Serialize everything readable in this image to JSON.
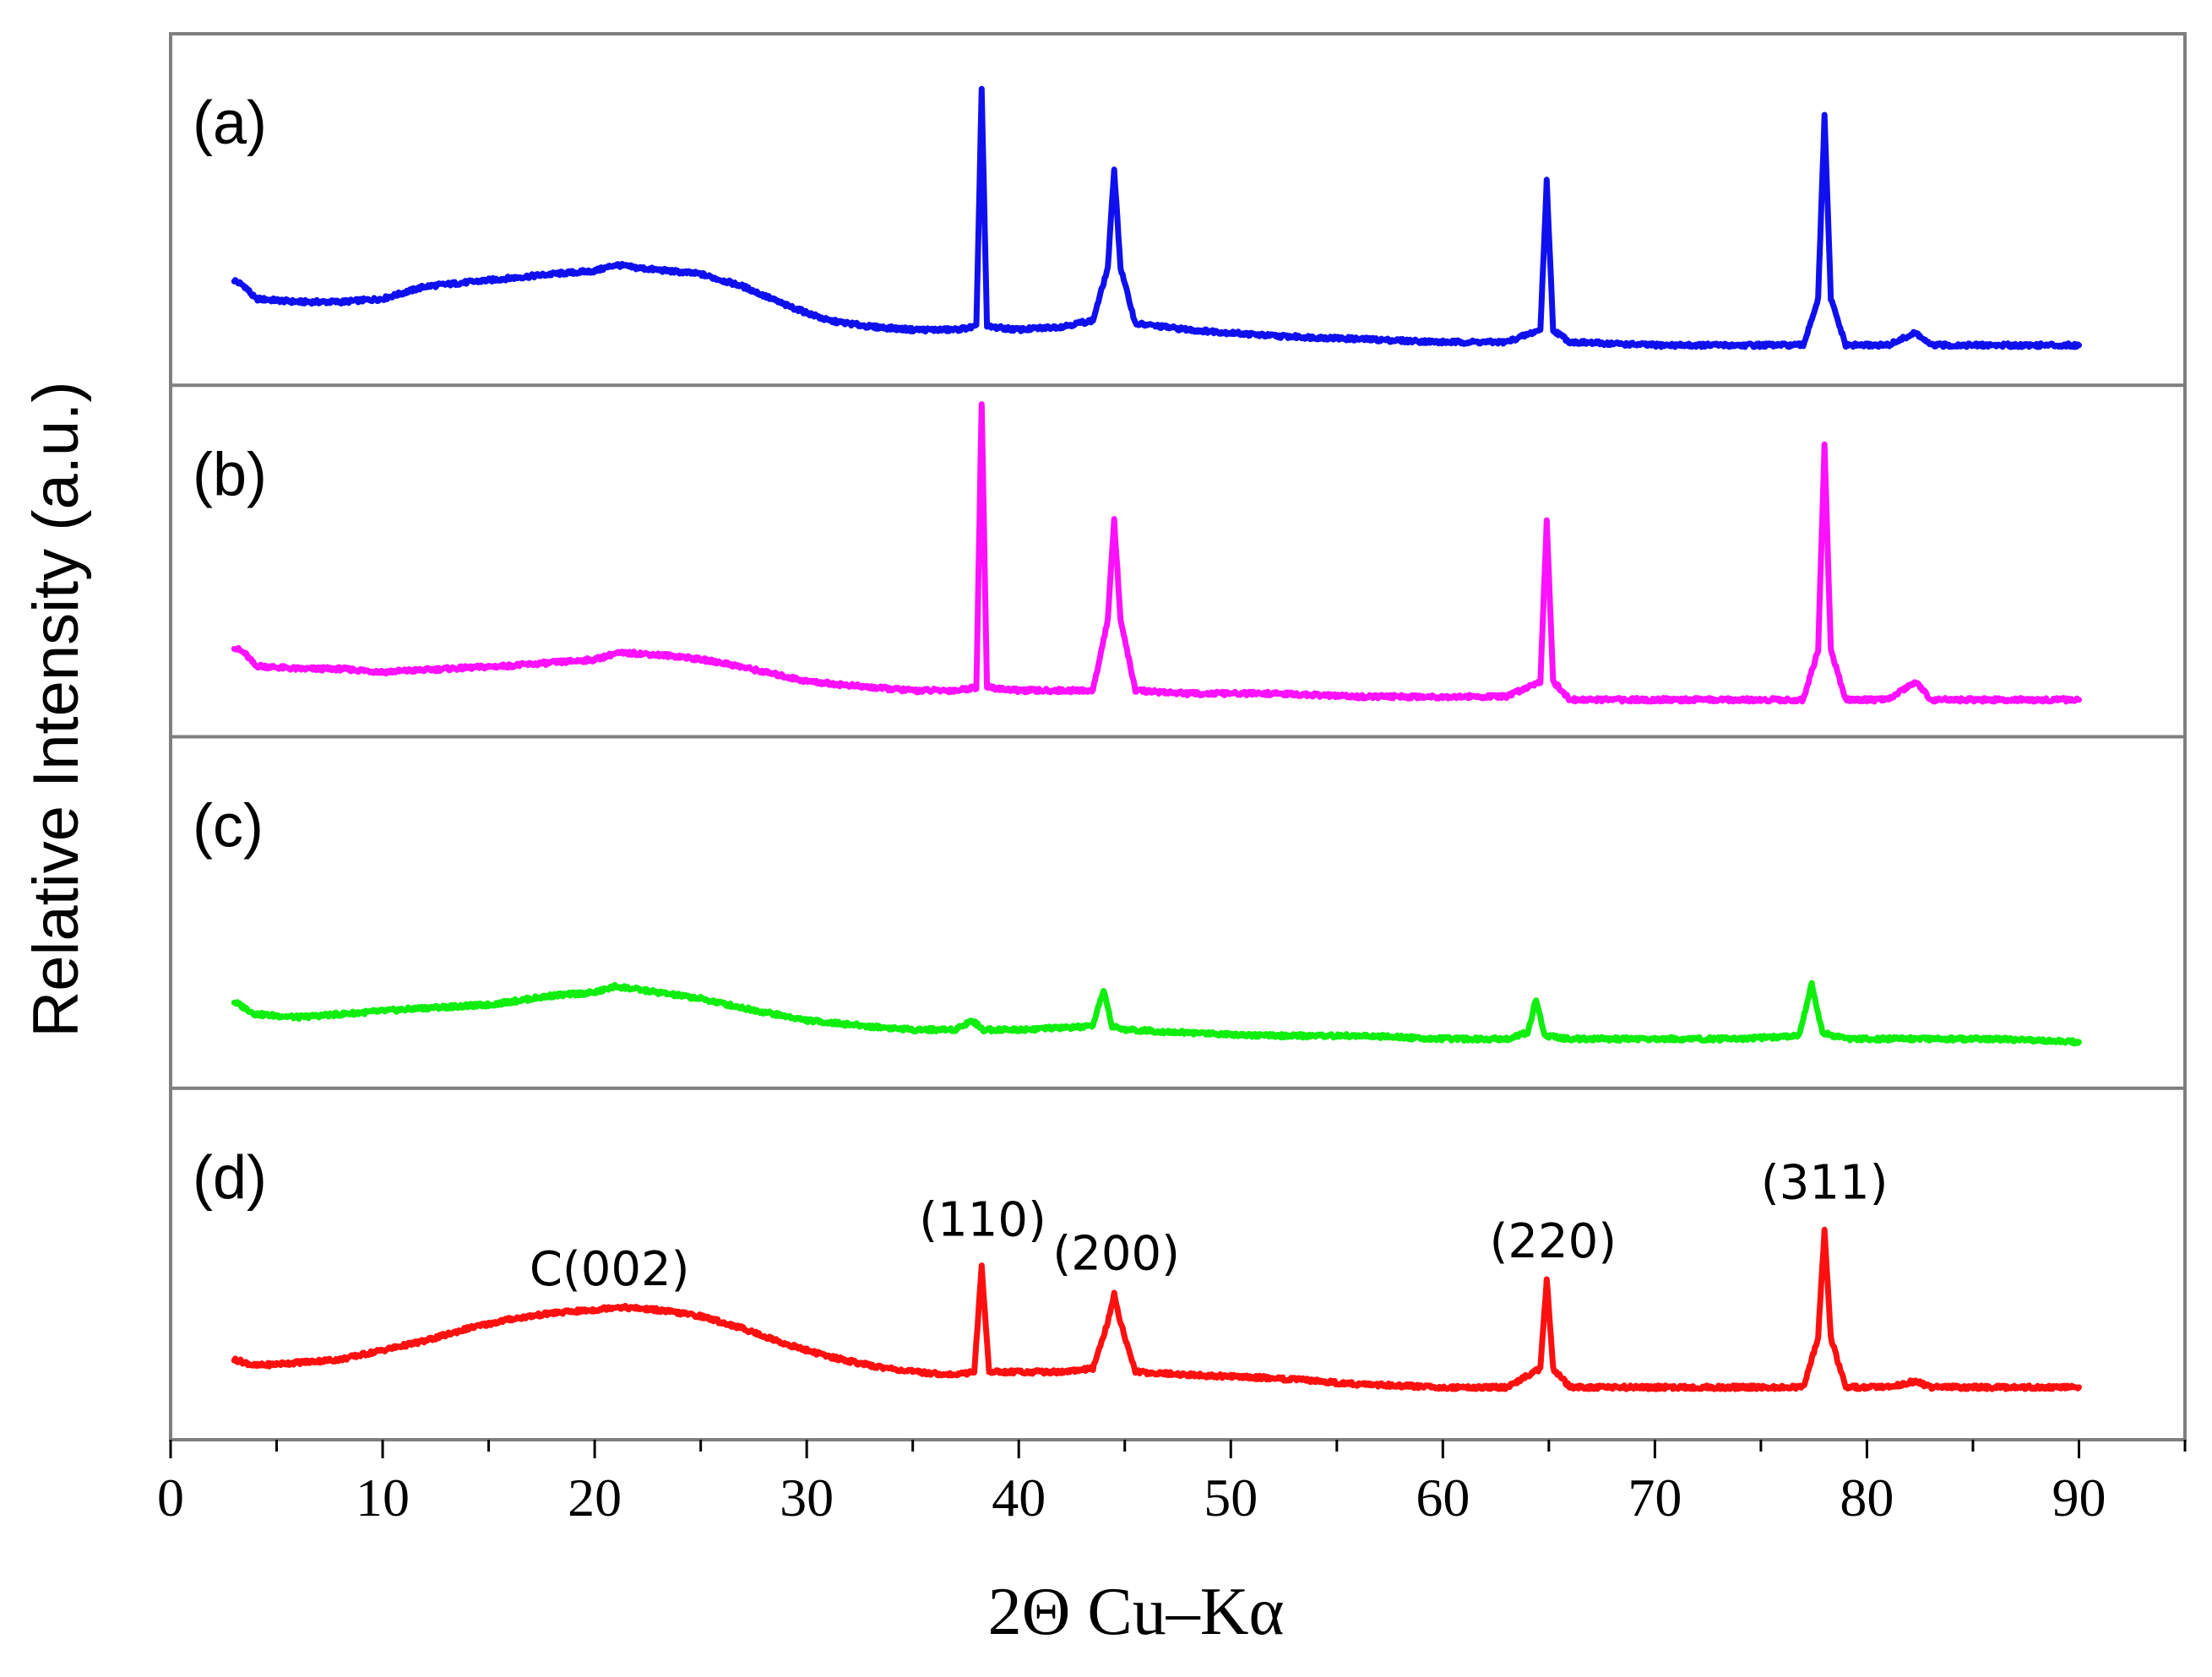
{
  "chart_data": {
    "type": "line",
    "title": "",
    "xlabel": "2Θ Cu–Kα",
    "ylabel": "Relative Intensity (a.u.)",
    "xlim": [
      0,
      95
    ],
    "xticks": [
      "0",
      "10",
      "20",
      "30",
      "40",
      "50",
      "60",
      "70",
      "80",
      "90"
    ],
    "grid": false,
    "legend": "none",
    "series": [
      {
        "name": "(a)",
        "color": "#1010ee",
        "points": [
          [
            3,
            0.26
          ],
          [
            3.5,
            0.24
          ],
          [
            4,
            0.2
          ],
          [
            6,
            0.19
          ],
          [
            8,
            0.19
          ],
          [
            10,
            0.2
          ],
          [
            12,
            0.24
          ],
          [
            15,
            0.26
          ],
          [
            18,
            0.28
          ],
          [
            20,
            0.29
          ],
          [
            21,
            0.31
          ],
          [
            22,
            0.3
          ],
          [
            25,
            0.28
          ],
          [
            27,
            0.24
          ],
          [
            29,
            0.18
          ],
          [
            31,
            0.13
          ],
          [
            33,
            0.11
          ],
          [
            35,
            0.1
          ],
          [
            37,
            0.1
          ],
          [
            38,
            0.11
          ],
          [
            38.25,
            0.88
          ],
          [
            38.5,
            0.11
          ],
          [
            40,
            0.1
          ],
          [
            42,
            0.11
          ],
          [
            43.5,
            0.13
          ],
          [
            44.2,
            0.3
          ],
          [
            44.5,
            0.62
          ],
          [
            44.8,
            0.3
          ],
          [
            45.5,
            0.12
          ],
          [
            48,
            0.1
          ],
          [
            52,
            0.08
          ],
          [
            56,
            0.07
          ],
          [
            60,
            0.06
          ],
          [
            63,
            0.06
          ],
          [
            64.6,
            0.1
          ],
          [
            64.9,
            0.58
          ],
          [
            65.2,
            0.1
          ],
          [
            66,
            0.06
          ],
          [
            70,
            0.05
          ],
          [
            74,
            0.05
          ],
          [
            77,
            0.05
          ],
          [
            77.7,
            0.2
          ],
          [
            78,
            0.79
          ],
          [
            78.3,
            0.2
          ],
          [
            79,
            0.05
          ],
          [
            81,
            0.05
          ],
          [
            82.3,
            0.09
          ],
          [
            83,
            0.05
          ],
          [
            86,
            0.05
          ],
          [
            90,
            0.05
          ]
        ]
      },
      {
        "name": "(b)",
        "color": "#ff10ff",
        "points": [
          [
            3,
            0.21
          ],
          [
            3.5,
            0.19
          ],
          [
            4,
            0.15
          ],
          [
            6,
            0.14
          ],
          [
            8,
            0.14
          ],
          [
            10,
            0.13
          ],
          [
            13,
            0.14
          ],
          [
            16,
            0.15
          ],
          [
            18,
            0.16
          ],
          [
            20,
            0.17
          ],
          [
            21,
            0.19
          ],
          [
            22,
            0.19
          ],
          [
            24,
            0.18
          ],
          [
            26,
            0.16
          ],
          [
            28,
            0.13
          ],
          [
            30,
            0.1
          ],
          [
            33,
            0.08
          ],
          [
            35,
            0.07
          ],
          [
            37,
            0.07
          ],
          [
            38,
            0.08
          ],
          [
            38.25,
            1.0
          ],
          [
            38.5,
            0.08
          ],
          [
            40,
            0.07
          ],
          [
            43.5,
            0.07
          ],
          [
            44.2,
            0.3
          ],
          [
            44.5,
            0.62
          ],
          [
            44.8,
            0.3
          ],
          [
            45.5,
            0.07
          ],
          [
            48,
            0.06
          ],
          [
            52,
            0.06
          ],
          [
            56,
            0.05
          ],
          [
            60,
            0.05
          ],
          [
            63,
            0.05
          ],
          [
            64.6,
            0.1
          ],
          [
            64.9,
            0.62
          ],
          [
            65.2,
            0.1
          ],
          [
            66,
            0.04
          ],
          [
            70,
            0.04
          ],
          [
            74,
            0.04
          ],
          [
            77,
            0.04
          ],
          [
            77.7,
            0.2
          ],
          [
            78,
            0.86
          ],
          [
            78.3,
            0.2
          ],
          [
            79,
            0.04
          ],
          [
            81,
            0.04
          ],
          [
            82.3,
            0.1
          ],
          [
            83,
            0.04
          ],
          [
            86,
            0.04
          ],
          [
            90,
            0.04
          ]
        ]
      },
      {
        "name": "(c)",
        "color": "#10ee10",
        "points": [
          [
            3,
            0.2
          ],
          [
            3.5,
            0.18
          ],
          [
            4,
            0.16
          ],
          [
            6,
            0.15
          ],
          [
            8,
            0.16
          ],
          [
            10,
            0.17
          ],
          [
            12,
            0.18
          ],
          [
            15,
            0.19
          ],
          [
            18,
            0.22
          ],
          [
            20,
            0.23
          ],
          [
            21,
            0.25
          ],
          [
            22,
            0.24
          ],
          [
            25,
            0.21
          ],
          [
            27,
            0.18
          ],
          [
            30,
            0.14
          ],
          [
            33,
            0.12
          ],
          [
            35,
            0.11
          ],
          [
            37,
            0.11
          ],
          [
            37.8,
            0.14
          ],
          [
            38.3,
            0.11
          ],
          [
            40,
            0.11
          ],
          [
            43.5,
            0.12
          ],
          [
            44,
            0.24
          ],
          [
            44.4,
            0.12
          ],
          [
            45,
            0.11
          ],
          [
            48,
            0.1
          ],
          [
            52,
            0.09
          ],
          [
            56,
            0.09
          ],
          [
            60,
            0.08
          ],
          [
            63,
            0.08
          ],
          [
            64,
            0.1
          ],
          [
            64.4,
            0.21
          ],
          [
            64.8,
            0.09
          ],
          [
            66,
            0.08
          ],
          [
            70,
            0.08
          ],
          [
            74,
            0.08
          ],
          [
            76.8,
            0.09
          ],
          [
            77.4,
            0.26
          ],
          [
            77.9,
            0.1
          ],
          [
            79,
            0.08
          ],
          [
            82,
            0.08
          ],
          [
            86,
            0.08
          ],
          [
            90,
            0.07
          ]
        ]
      },
      {
        "name": "(d)",
        "color": "#ff1010",
        "points": [
          [
            3,
            0.18
          ],
          [
            4,
            0.16
          ],
          [
            6,
            0.17
          ],
          [
            8,
            0.18
          ],
          [
            10,
            0.21
          ],
          [
            12,
            0.24
          ],
          [
            14,
            0.28
          ],
          [
            16,
            0.31
          ],
          [
            18,
            0.33
          ],
          [
            20,
            0.34
          ],
          [
            21,
            0.35
          ],
          [
            23,
            0.34
          ],
          [
            25,
            0.32
          ],
          [
            27,
            0.28
          ],
          [
            29,
            0.23
          ],
          [
            31,
            0.19
          ],
          [
            33,
            0.16
          ],
          [
            35,
            0.14
          ],
          [
            37,
            0.13
          ],
          [
            37.9,
            0.14
          ],
          [
            38.25,
            0.48
          ],
          [
            38.6,
            0.14
          ],
          [
            40,
            0.14
          ],
          [
            42,
            0.14
          ],
          [
            43.5,
            0.15
          ],
          [
            44.2,
            0.3
          ],
          [
            44.5,
            0.39
          ],
          [
            44.8,
            0.3
          ],
          [
            45.5,
            0.14
          ],
          [
            48,
            0.13
          ],
          [
            52,
            0.12
          ],
          [
            56,
            0.1
          ],
          [
            60,
            0.09
          ],
          [
            63,
            0.09
          ],
          [
            64.6,
            0.15
          ],
          [
            64.9,
            0.44
          ],
          [
            65.2,
            0.15
          ],
          [
            66,
            0.09
          ],
          [
            70,
            0.09
          ],
          [
            74,
            0.09
          ],
          [
            77,
            0.09
          ],
          [
            77.7,
            0.25
          ],
          [
            78,
            0.6
          ],
          [
            78.3,
            0.25
          ],
          [
            79,
            0.09
          ],
          [
            81,
            0.09
          ],
          [
            82.3,
            0.11
          ],
          [
            83,
            0.09
          ],
          [
            86,
            0.09
          ],
          [
            90,
            0.09
          ]
        ]
      }
    ],
    "annotations": [
      {
        "text": "C(002)",
        "x": 20.7,
        "y": 0.42,
        "series": "(d)"
      },
      {
        "text": "(110)",
        "x": 38.3,
        "y": 0.58,
        "series": "(d)"
      },
      {
        "text": "(200)",
        "x": 44.6,
        "y": 0.47,
        "series": "(d)"
      },
      {
        "text": "(220)",
        "x": 65.2,
        "y": 0.51,
        "series": "(d)"
      },
      {
        "text": "(311)",
        "x": 78,
        "y": 0.7,
        "series": "(d)"
      }
    ]
  }
}
